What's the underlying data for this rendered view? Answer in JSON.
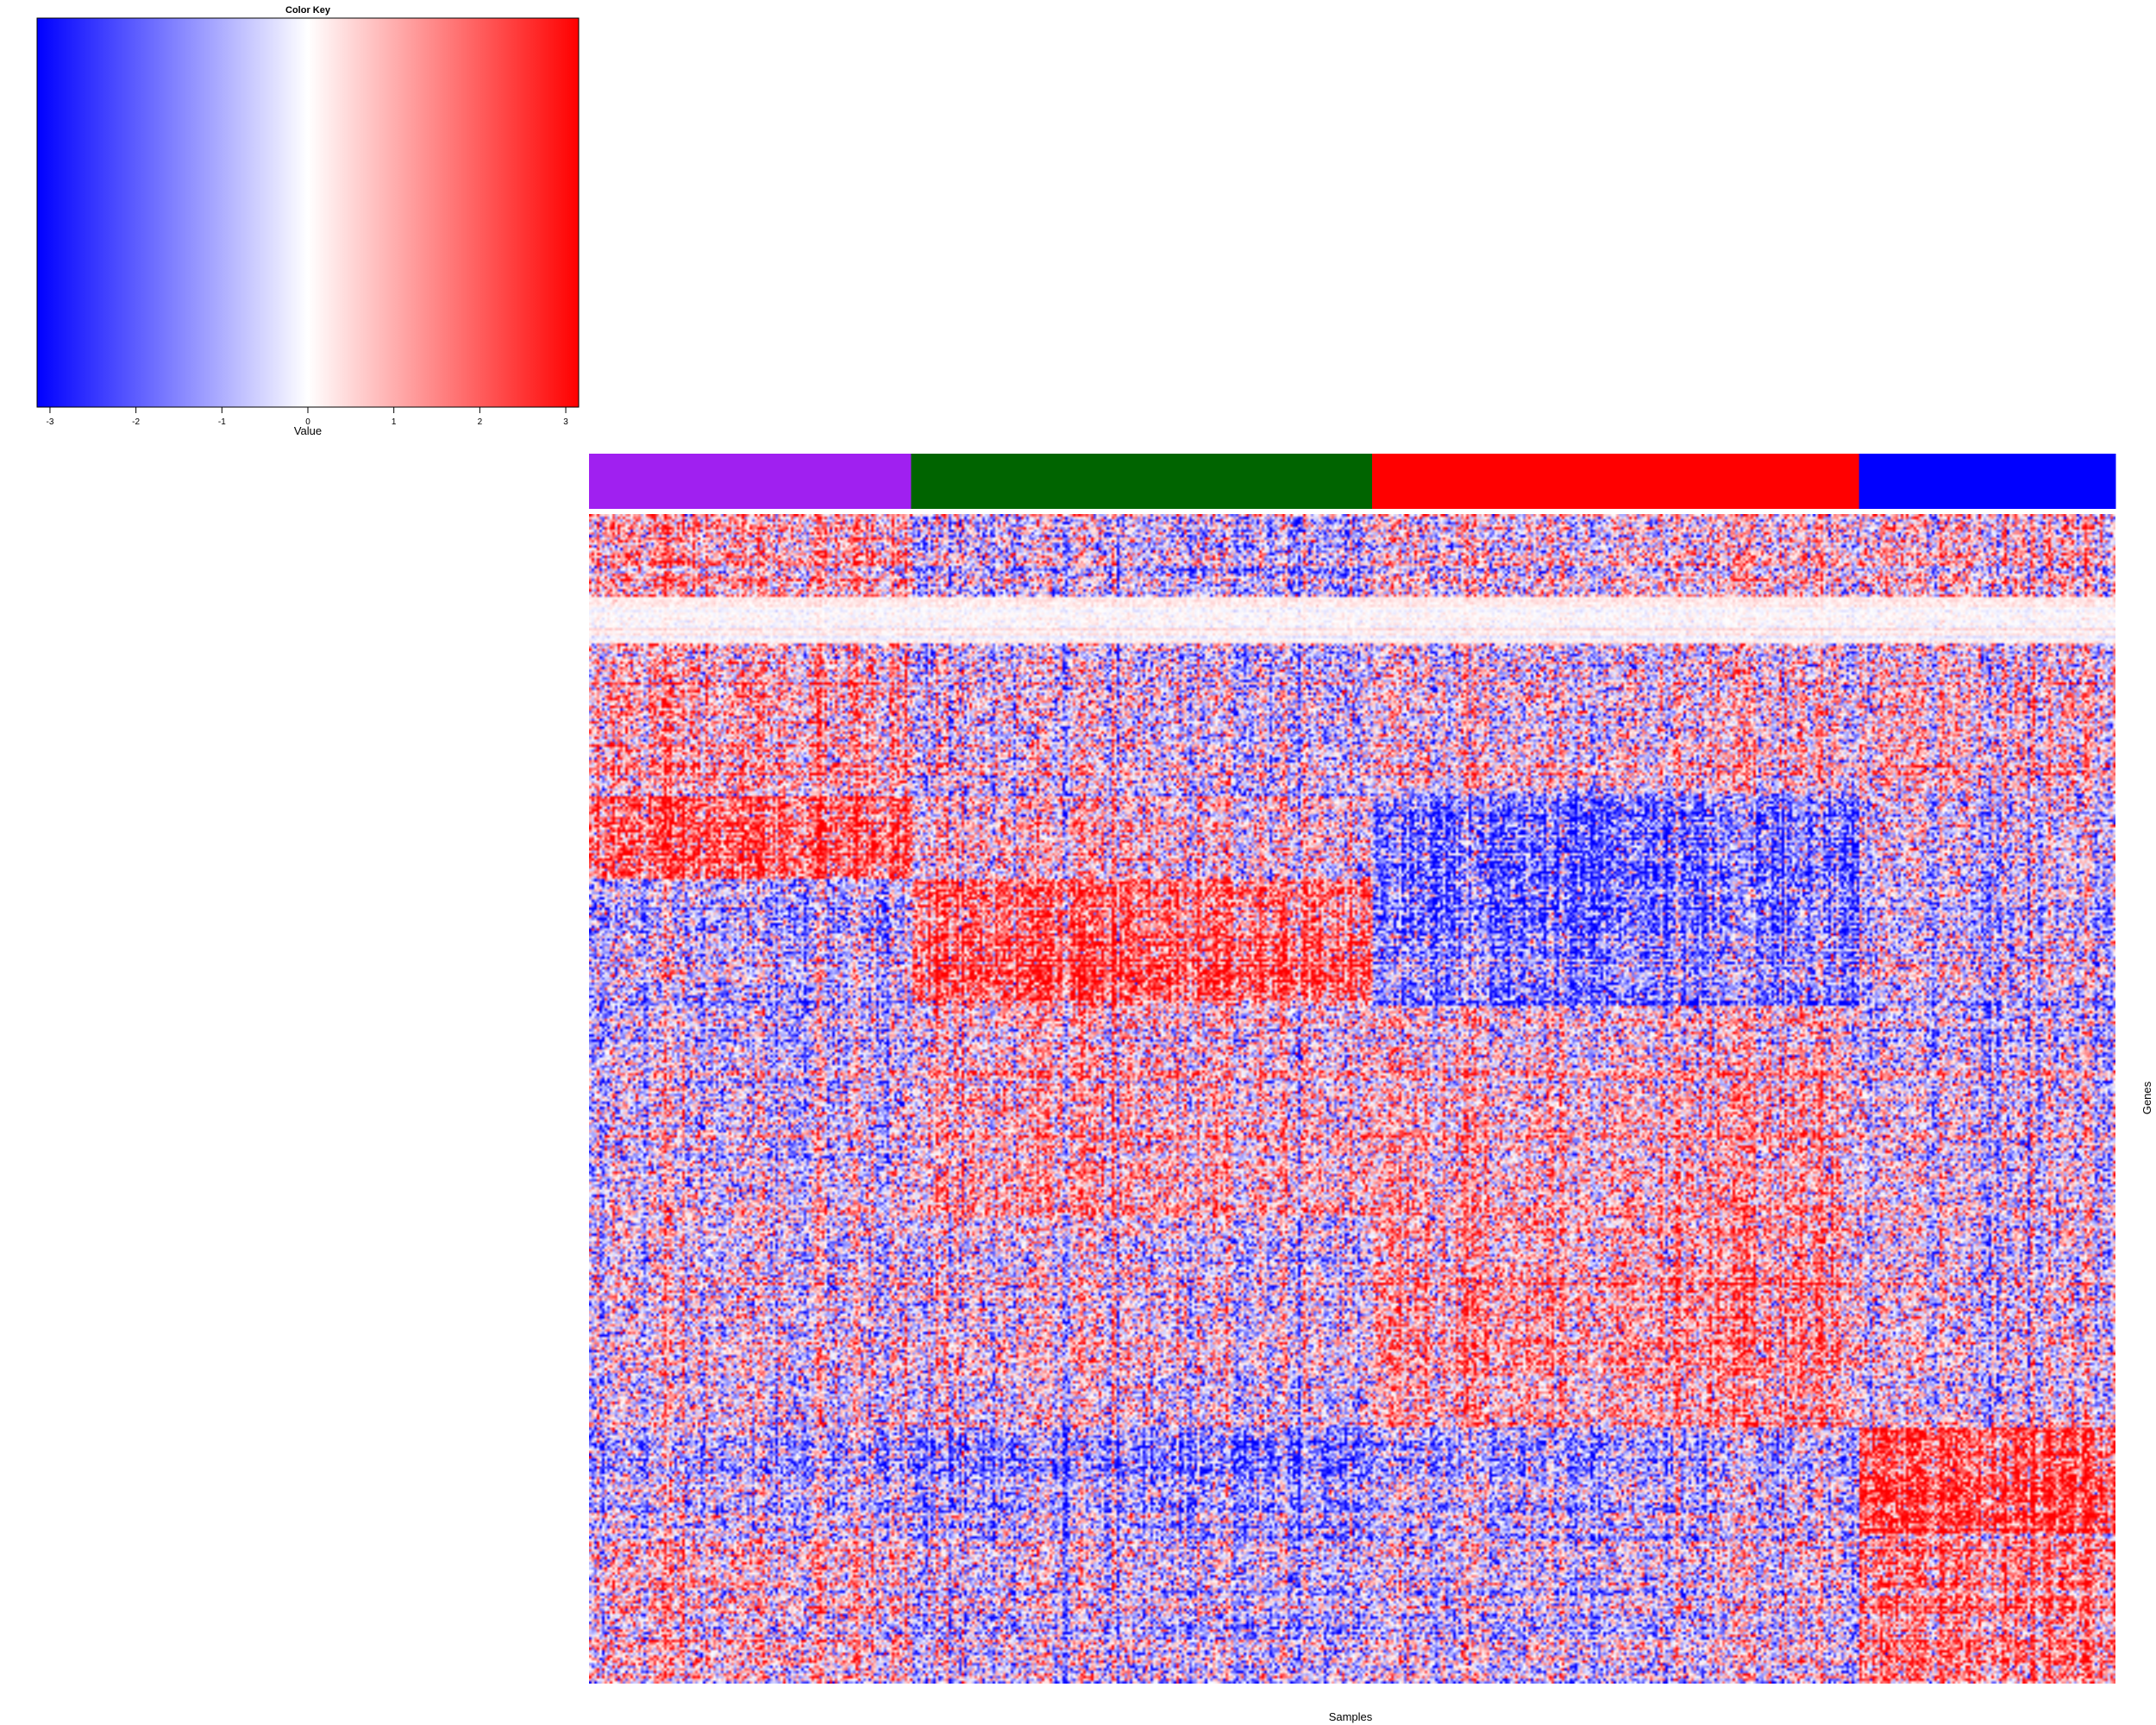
{
  "chart_data": [
    {
      "type": "heatmap",
      "title": "Color Key",
      "xlabel": "Value",
      "colorscale": [
        "#0000ff",
        "#ffffff",
        "#ff0000"
      ],
      "range": [
        -3.15,
        3.15
      ],
      "ticks": [
        -3,
        -2,
        -1,
        0,
        1,
        2,
        3
      ]
    },
    {
      "type": "heatmap",
      "title": "",
      "xlabel": "Samples",
      "ylabel": "Genes",
      "colorscale": [
        "#0000ff",
        "#ffffff",
        "#ff0000"
      ],
      "value_range": [
        -3,
        3
      ],
      "sample_groups": [
        {
          "color": "#a020f0",
          "fraction": 0.211
        },
        {
          "color": "#006400",
          "fraction": 0.302
        },
        {
          "color": "#ff0000",
          "fraction": 0.319
        },
        {
          "color": "#0000ff",
          "fraction": 0.168
        }
      ],
      "block_pattern": {
        "note": "Approximate mean expression per gene band (rows, top to bottom, fraction of height) and sample group (columns)",
        "bands": [
          {
            "from": 0.0,
            "to": 0.07,
            "means": [
              0.7,
              -0.4,
              0.2,
              0.3
            ]
          },
          {
            "from": 0.07,
            "to": 0.11,
            "means": [
              0.1,
              0.1,
              0.1,
              0.1
            ],
            "pale": true
          },
          {
            "from": 0.11,
            "to": 0.24,
            "means": [
              0.6,
              -0.2,
              0.1,
              0.2
            ]
          },
          {
            "from": 0.24,
            "to": 0.31,
            "means": [
              1.8,
              0.3,
              -1.6,
              -0.3
            ]
          },
          {
            "from": 0.31,
            "to": 0.42,
            "means": [
              -0.7,
              1.8,
              -1.4,
              -0.5
            ]
          },
          {
            "from": 0.42,
            "to": 0.6,
            "means": [
              -0.4,
              0.5,
              0.5,
              -0.3
            ]
          },
          {
            "from": 0.6,
            "to": 0.78,
            "means": [
              -0.2,
              -0.1,
              0.9,
              -0.2
            ]
          },
          {
            "from": 0.78,
            "to": 0.87,
            "means": [
              -0.6,
              -1.0,
              -0.6,
              2.2
            ]
          },
          {
            "from": 0.87,
            "to": 1.0,
            "means": [
              0.2,
              -0.4,
              -0.3,
              1.2
            ]
          }
        ]
      }
    }
  ]
}
